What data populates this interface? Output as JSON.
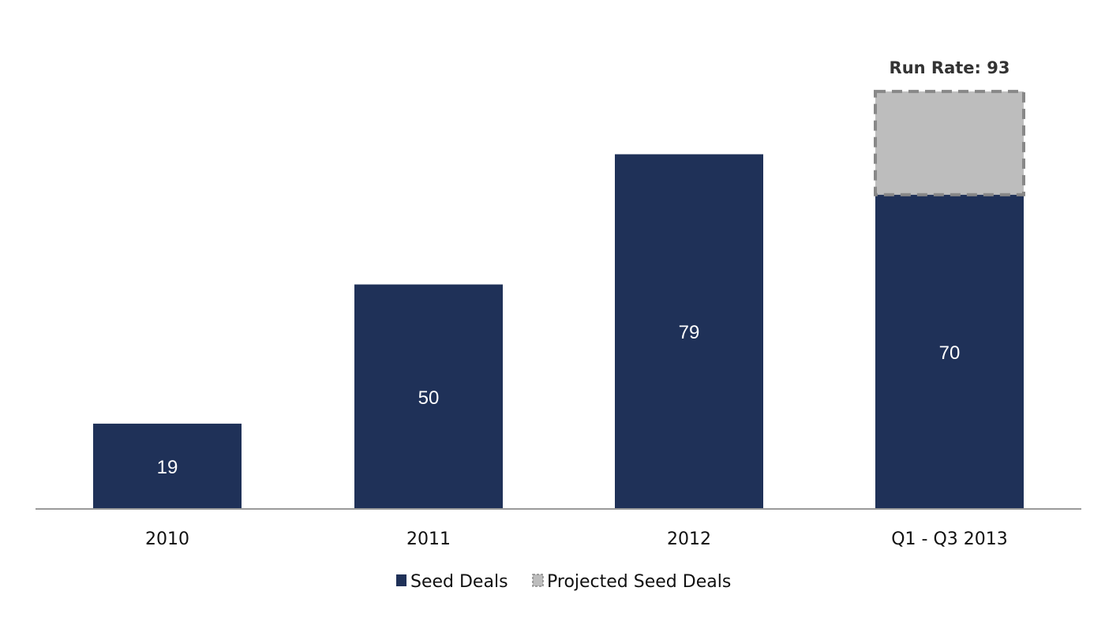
{
  "chart_data": {
    "type": "bar",
    "stacked": true,
    "categories": [
      "2010",
      "2011",
      "2012",
      "Q1 - Q3 2013"
    ],
    "series": [
      {
        "name": "Seed Deals",
        "values": [
          19,
          50,
          79,
          70
        ],
        "labels": [
          "19",
          "50",
          "79",
          "70"
        ],
        "color": "#1f3158"
      },
      {
        "name": "Projected Seed Deals",
        "values": [
          0,
          0,
          0,
          23
        ],
        "color": "#bdbdbd",
        "border_style": "dashed",
        "border_color": "#888888"
      }
    ],
    "annotations": [
      {
        "category": "Q1 - Q3 2013",
        "text": "Run Rate: 93",
        "value": 93
      }
    ],
    "ylim": [
      0,
      100
    ],
    "grid": false,
    "legend_position": "bottom",
    "title": "",
    "xlabel": "",
    "ylabel": ""
  }
}
